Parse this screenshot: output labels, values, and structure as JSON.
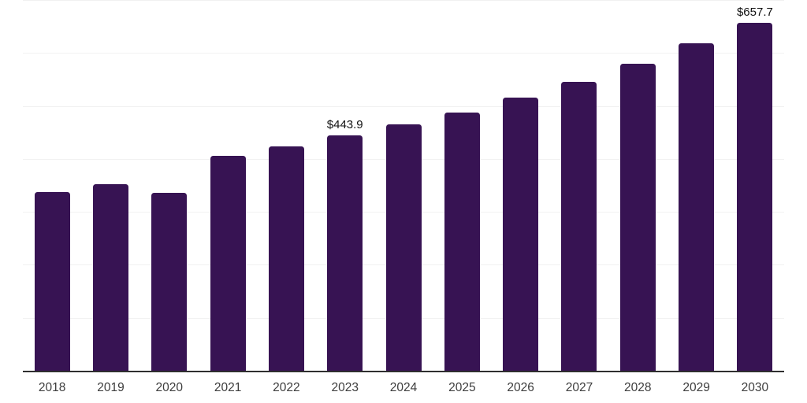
{
  "chart_data": {
    "type": "bar",
    "categories": [
      "2018",
      "2019",
      "2020",
      "2021",
      "2022",
      "2023",
      "2024",
      "2025",
      "2026",
      "2027",
      "2028",
      "2029",
      "2030"
    ],
    "values": [
      337.5,
      352.0,
      336.0,
      406.0,
      424.0,
      443.9,
      465.0,
      488.0,
      515.5,
      546.0,
      579.0,
      618.0,
      657.7
    ],
    "data_labels": [
      "",
      "",
      "",
      "",
      "",
      "$443.9",
      "",
      "",
      "",
      "",
      "",
      "",
      "$657.7"
    ],
    "title": "",
    "xlabel": "",
    "ylabel": "",
    "ylim": [
      0,
      700
    ],
    "grid": "horizontal",
    "gridline_interval": 100,
    "legend": "none",
    "colors": {
      "bar": "#371353",
      "gridline": "#f1f1f1",
      "axis_line": "#2f2f2f",
      "tick_label": "#3d3d3d",
      "data_label": "#111111"
    }
  }
}
